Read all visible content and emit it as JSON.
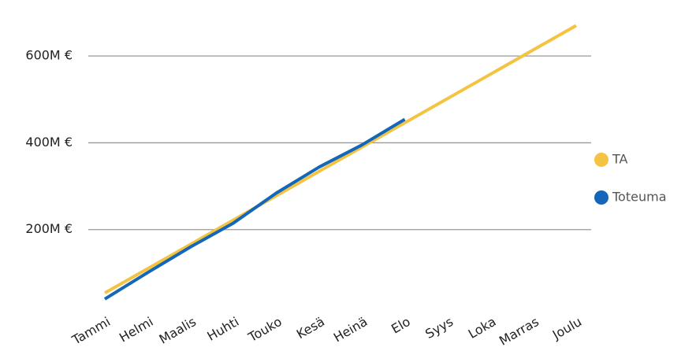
{
  "chart_data": {
    "type": "line",
    "categories": [
      "Tammi",
      "Helmi",
      "Maalis",
      "Huhti",
      "Touko",
      "Kesä",
      "Heinä",
      "Elo",
      "Syys",
      "Loka",
      "Marras",
      "Joulu"
    ],
    "series": [
      {
        "name": "TA",
        "color": "#f5c342",
        "values": [
          54,
          110,
          166,
          222,
          278,
          334,
          390,
          446,
          502,
          558,
          614,
          670
        ]
      },
      {
        "name": "Toteuma",
        "color": "#1467b8",
        "values": [
          40,
          101,
          160,
          215,
          284,
          344,
          395,
          454,
          null,
          null,
          null,
          null
        ]
      }
    ],
    "ylim": [
      0,
      700
    ],
    "yticks": [
      {
        "value": 200,
        "label": "200M €"
      },
      {
        "value": 400,
        "label": "400M €"
      },
      {
        "value": 600,
        "label": "600M €"
      }
    ],
    "grid": true,
    "legend": "right"
  }
}
